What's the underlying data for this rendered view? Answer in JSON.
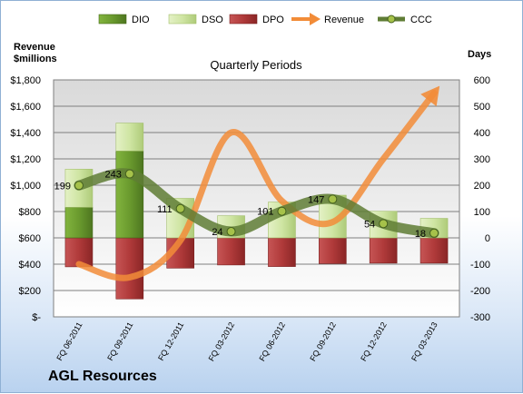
{
  "company": "AGL Resources",
  "left_axis_title": [
    "Revenue",
    "$millions"
  ],
  "right_axis_title": "Days",
  "chart_data": {
    "type": "combo",
    "title": "Quarterly Periods",
    "categories": [
      "FQ 06-2011",
      "FQ 09-2011",
      "FQ 12-2011",
      "FQ 03-2012",
      "FQ 06-2012",
      "FQ 09-2012",
      "FQ 12-2012",
      "FQ 03-2013"
    ],
    "left_axis": {
      "ylim": [
        0,
        1800
      ],
      "ticks": [
        "$-",
        "$200",
        "$400",
        "$600",
        "$800",
        "$1,000",
        "$1,200",
        "$1,400",
        "$1,600",
        "$1,800"
      ]
    },
    "right_axis": {
      "ylim": [
        -300,
        600
      ],
      "ticks": [
        "-300",
        "-200",
        "-100",
        "0",
        "100",
        "200",
        "300",
        "400",
        "500",
        "600"
      ]
    },
    "series": [
      {
        "name": "DIO",
        "kind": "stacked-bar",
        "axis": "right",
        "color": "#6a9a2e",
        "values": [
          116,
          330,
          0,
          0,
          0,
          0,
          0,
          0
        ]
      },
      {
        "name": "DSO",
        "kind": "stacked-bar",
        "axis": "right",
        "color": "#cfe5a3",
        "values": [
          145,
          106,
          150,
          84,
          136,
          162,
          101,
          74
        ]
      },
      {
        "name": "DPO",
        "kind": "stacked-bar",
        "axis": "right",
        "color": "#b03a3a",
        "values": [
          -110,
          -232,
          -115,
          -103,
          -109,
          -98,
          -96,
          -96
        ]
      },
      {
        "name": "Revenue",
        "kind": "line",
        "axis": "left",
        "color": "#f28c38",
        "values": [
          400,
          300,
          580,
          1400,
          880,
          720,
          1200,
          1700
        ]
      },
      {
        "name": "CCC",
        "kind": "line",
        "axis": "right",
        "color": "#5f7d35",
        "values": [
          199,
          243,
          111,
          24,
          101,
          147,
          54,
          18
        ]
      }
    ],
    "data_labels": [
      "199",
      "243",
      "111",
      "24",
      "101",
      "147",
      "54",
      "18"
    ],
    "legend": "top",
    "grid": true
  }
}
